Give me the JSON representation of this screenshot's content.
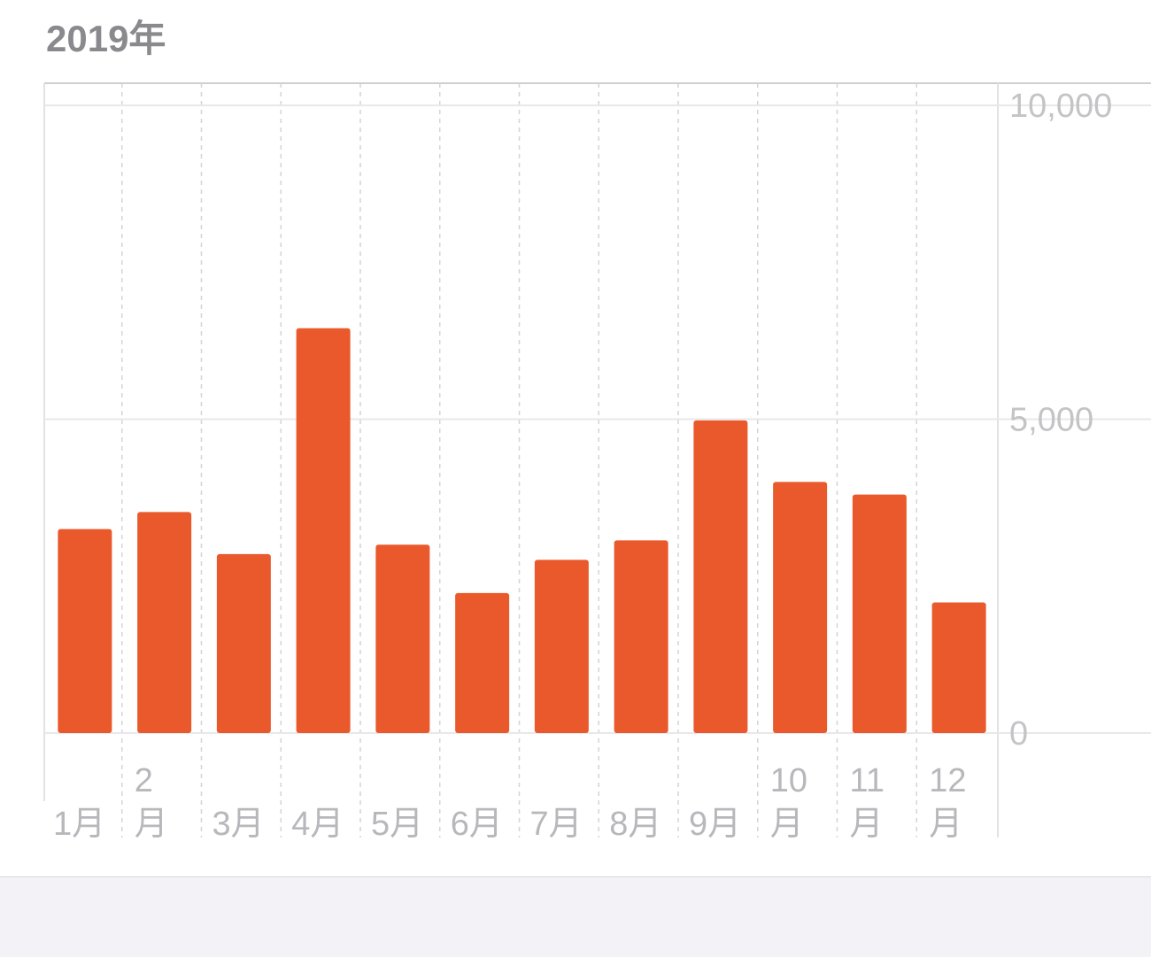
{
  "title": "2019年",
  "chart_data": {
    "type": "bar",
    "categories": [
      "1月",
      "2月",
      "3月",
      "4月",
      "5月",
      "6月",
      "7月",
      "8月",
      "9月",
      "10月",
      "11月",
      "12月"
    ],
    "category_label_lines": [
      [
        "1月"
      ],
      [
        "2",
        "月"
      ],
      [
        "3月"
      ],
      [
        "4月"
      ],
      [
        "5月"
      ],
      [
        "6月"
      ],
      [
        "7月"
      ],
      [
        "8月"
      ],
      [
        "9月"
      ],
      [
        "10",
        "月"
      ],
      [
        "11",
        "月"
      ],
      [
        "12",
        "月"
      ]
    ],
    "values": [
      3250,
      3520,
      2850,
      6450,
      3000,
      2230,
      2760,
      3070,
      4980,
      4000,
      3800,
      2080
    ],
    "ylim": [
      0,
      10000
    ],
    "yticks": [
      0,
      5000,
      10000
    ],
    "ytick_labels": [
      "0",
      "5,000",
      "10,000"
    ],
    "xlabel": "",
    "ylabel": "",
    "grid": true,
    "colors": {
      "bar": "#ea592b",
      "grid": "#e8e8ea",
      "grid_dashed": "#d4d4d6",
      "axis_text": "#c4c4c6"
    }
  }
}
